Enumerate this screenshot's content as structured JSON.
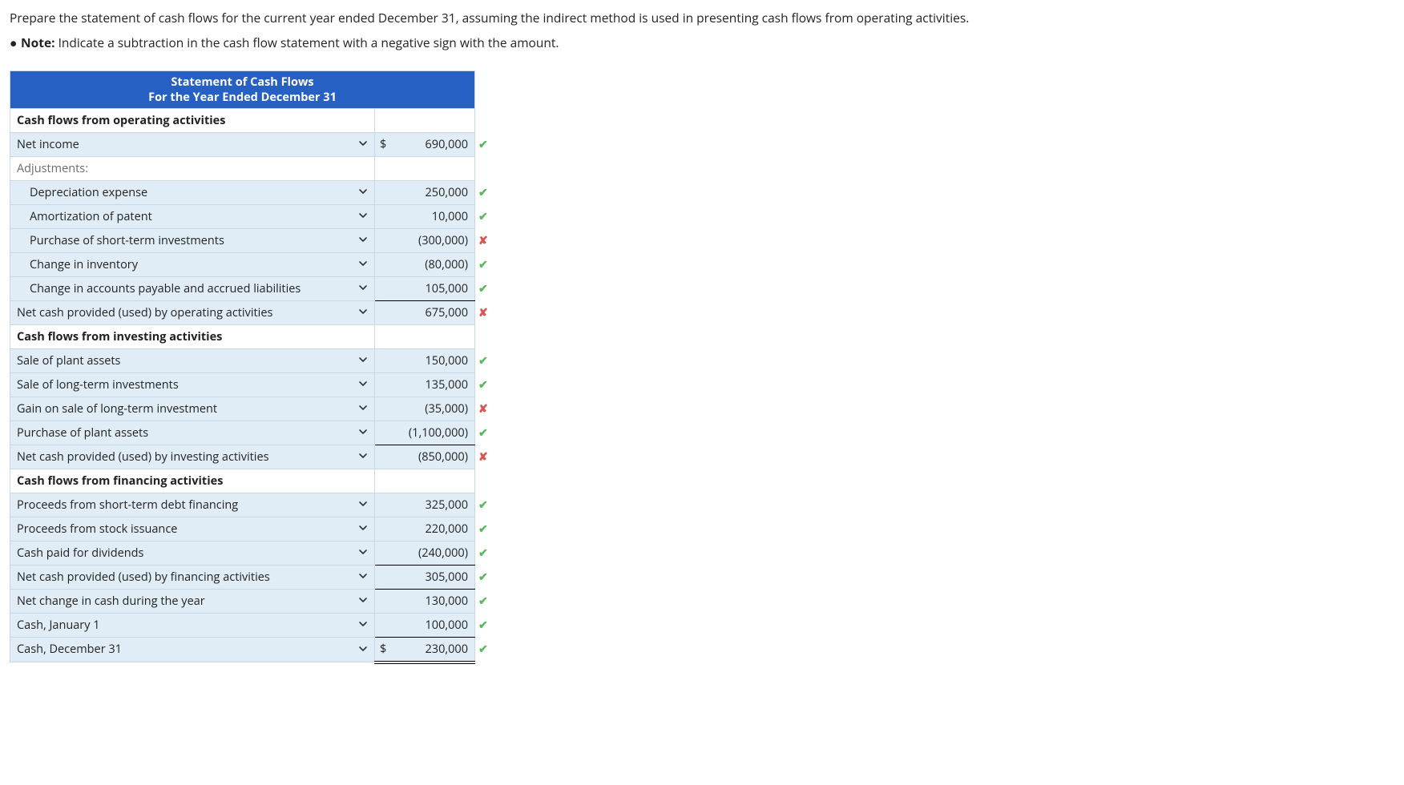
{
  "instructions": {
    "line1": "Prepare the statement of cash flows for the current year ended December 31, assuming the indirect method is used in presenting cash flows from operating activities.",
    "note_label": "Note:",
    "note_text": " Indicate a subtraction in the cash flow statement with a negative sign with the amount."
  },
  "table": {
    "header_line1": "Statement of Cash Flows",
    "header_line2": "For the Year Ended December 31",
    "colors": {
      "header_bg": "#2660c3",
      "header_text": "#ffffff",
      "row_tint": "#e0edf6",
      "row_plain": "#ffffff",
      "border": "#c9d7e4",
      "correct": "#5cb85c",
      "wrong": "#d9534f"
    }
  },
  "rows": [
    {
      "label": "Cash flows from operating activities",
      "bold": true,
      "indent": 0,
      "chevron": false,
      "value": "",
      "dollar": false,
      "mark": "",
      "tint": false,
      "value_border": ""
    },
    {
      "label": "Net income",
      "bold": false,
      "indent": 0,
      "chevron": true,
      "value": "690,000",
      "dollar": true,
      "mark": "correct",
      "tint": true,
      "value_border": ""
    },
    {
      "label": "Adjustments:",
      "bold": false,
      "indent": 0,
      "chevron": false,
      "value": "",
      "dollar": false,
      "mark": "",
      "tint": false,
      "faded": true,
      "value_border": ""
    },
    {
      "label": "Depreciation expense",
      "bold": false,
      "indent": 1,
      "chevron": true,
      "value": "250,000",
      "dollar": false,
      "mark": "correct",
      "tint": true,
      "value_border": ""
    },
    {
      "label": "Amortization of patent",
      "bold": false,
      "indent": 1,
      "chevron": true,
      "value": "10,000",
      "dollar": false,
      "mark": "correct",
      "tint": true,
      "value_border": ""
    },
    {
      "label": "Purchase of short-term investments",
      "bold": false,
      "indent": 1,
      "chevron": true,
      "value": "(300,000)",
      "dollar": false,
      "mark": "wrong",
      "tint": true,
      "value_border": ""
    },
    {
      "label": "Change in inventory",
      "bold": false,
      "indent": 1,
      "chevron": true,
      "value": "(80,000)",
      "dollar": false,
      "mark": "correct",
      "tint": true,
      "value_border": ""
    },
    {
      "label": "Change in accounts payable and accrued liabilities",
      "bold": false,
      "indent": 1,
      "chevron": true,
      "value": "105,000",
      "dollar": false,
      "mark": "correct",
      "tint": true,
      "value_border": "sub-bottom"
    },
    {
      "label": "Net cash provided (used) by operating activities",
      "bold": false,
      "indent": 0,
      "chevron": true,
      "value": "675,000",
      "dollar": false,
      "mark": "wrong",
      "tint": true,
      "value_border": "sub-top"
    },
    {
      "label": "Cash flows from investing activities",
      "bold": true,
      "indent": 0,
      "chevron": false,
      "value": "",
      "dollar": false,
      "mark": "",
      "tint": false,
      "value_border": ""
    },
    {
      "label": "Sale of plant assets",
      "bold": false,
      "indent": 0,
      "chevron": true,
      "value": "150,000",
      "dollar": false,
      "mark": "correct",
      "tint": true,
      "value_border": ""
    },
    {
      "label": "Sale of long-term investments",
      "bold": false,
      "indent": 0,
      "chevron": true,
      "value": "135,000",
      "dollar": false,
      "mark": "correct",
      "tint": true,
      "value_border": ""
    },
    {
      "label": "Gain on sale of long-term investment",
      "bold": false,
      "indent": 0,
      "chevron": true,
      "value": "(35,000)",
      "dollar": false,
      "mark": "wrong",
      "tint": true,
      "value_border": ""
    },
    {
      "label": "Purchase of plant assets",
      "bold": false,
      "indent": 0,
      "chevron": true,
      "value": "(1,100,000)",
      "dollar": false,
      "mark": "correct",
      "tint": true,
      "value_border": "sub-bottom"
    },
    {
      "label": "Net cash provided (used) by investing activities",
      "bold": false,
      "indent": 0,
      "chevron": true,
      "value": "(850,000)",
      "dollar": false,
      "mark": "wrong",
      "tint": true,
      "value_border": "sub-top"
    },
    {
      "label": "Cash flows from financing activities",
      "bold": true,
      "indent": 0,
      "chevron": false,
      "value": "",
      "dollar": false,
      "mark": "",
      "tint": false,
      "value_border": ""
    },
    {
      "label": "Proceeds from short-term debt financing",
      "bold": false,
      "indent": 0,
      "chevron": true,
      "value": "325,000",
      "dollar": false,
      "mark": "correct",
      "tint": true,
      "value_border": ""
    },
    {
      "label": "Proceeds from stock issuance",
      "bold": false,
      "indent": 0,
      "chevron": true,
      "value": "220,000",
      "dollar": false,
      "mark": "correct",
      "tint": true,
      "value_border": ""
    },
    {
      "label": "Cash paid for dividends",
      "bold": false,
      "indent": 0,
      "chevron": true,
      "value": "(240,000)",
      "dollar": false,
      "mark": "correct",
      "tint": true,
      "value_border": "sub-bottom"
    },
    {
      "label": "Net cash provided (used) by financing activities",
      "bold": false,
      "indent": 0,
      "chevron": true,
      "value": "305,000",
      "dollar": false,
      "mark": "correct",
      "tint": true,
      "value_border": "sub-top sub-bottom"
    },
    {
      "label": "Net change in cash during the year",
      "bold": false,
      "indent": 0,
      "chevron": true,
      "value": "130,000",
      "dollar": false,
      "mark": "correct",
      "tint": true,
      "value_border": "sub-top"
    },
    {
      "label": "Cash, January 1",
      "bold": false,
      "indent": 0,
      "chevron": true,
      "value": "100,000",
      "dollar": false,
      "mark": "correct",
      "tint": true,
      "value_border": "sub-bottom"
    },
    {
      "label": "Cash, December 31",
      "bold": false,
      "indent": 0,
      "chevron": true,
      "value": "230,000",
      "dollar": true,
      "mark": "correct",
      "tint": true,
      "value_border": "sub-top dbl-bottom"
    }
  ]
}
